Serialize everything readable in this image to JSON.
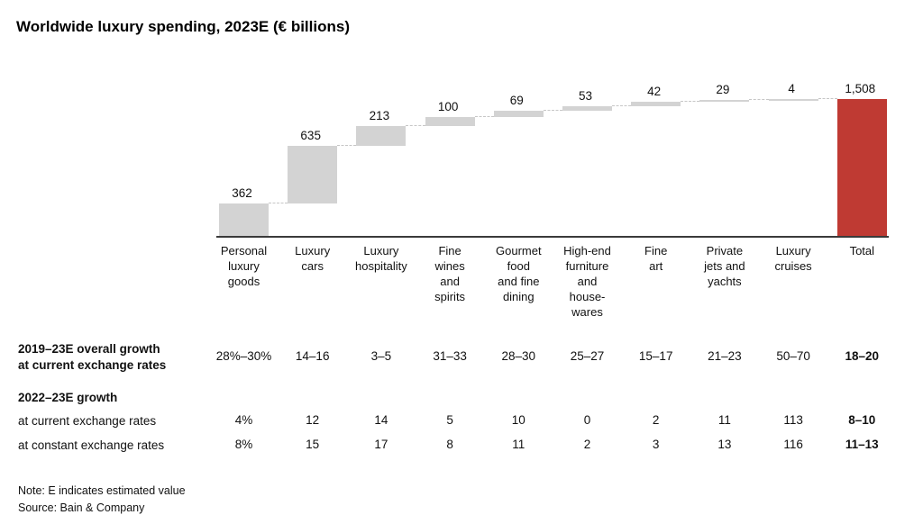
{
  "title": "Worldwide luxury spending, 2023E (€ billions)",
  "chart_data": {
    "type": "bar",
    "subtype": "waterfall",
    "title": "Worldwide luxury spending, 2023E (€ billions)",
    "unit": "€ billions",
    "categories": [
      "Personal luxury goods",
      "Luxury cars",
      "Luxury hospitality",
      "Fine wines and spirits",
      "Gourmet food and fine dining",
      "High-end furniture and house-wares",
      "Fine art",
      "Private jets and yachts",
      "Luxury cruises",
      "Total"
    ],
    "category_lines": [
      [
        "Personal",
        "luxury",
        "goods"
      ],
      [
        "Luxury",
        "cars"
      ],
      [
        "Luxury",
        "hospitality"
      ],
      [
        "Fine",
        "wines",
        "and",
        "spirits"
      ],
      [
        "Gourmet",
        "food",
        "and fine",
        "dining"
      ],
      [
        "High-end",
        "furniture",
        "and",
        "house-",
        "wares"
      ],
      [
        "Fine",
        "art"
      ],
      [
        "Private",
        "jets and",
        "yachts"
      ],
      [
        "Luxury",
        "cruises"
      ],
      [
        "Total"
      ]
    ],
    "values": [
      362,
      635,
      213,
      100,
      69,
      53,
      42,
      29,
      4
    ],
    "total": 1508,
    "value_labels": [
      "362",
      "635",
      "213",
      "100",
      "69",
      "53",
      "42",
      "29",
      "4",
      "1,508"
    ],
    "bar_color": "#d3d3d3",
    "total_color": "#bf3a33",
    "ylim": [
      0,
      1508
    ],
    "grid": false,
    "legend": false
  },
  "table": {
    "rows": [
      {
        "kind": "data",
        "label_lines": [
          "2019–23E overall growth",
          "at current exchange rates"
        ],
        "label_bold": true,
        "values": [
          "28%–30%",
          "14–16",
          "3–5",
          "31–33",
          "28–30",
          "25–27",
          "15–17",
          "21–23",
          "50–70",
          "18–20"
        ]
      },
      {
        "kind": "section",
        "label_lines": [
          "2022–23E growth"
        ],
        "label_bold": true
      },
      {
        "kind": "data",
        "label_lines": [
          "at current exchange rates"
        ],
        "label_bold": false,
        "values": [
          "4%",
          "12",
          "14",
          "5",
          "10",
          "0",
          "2",
          "11",
          "113",
          "8–10"
        ]
      },
      {
        "kind": "data",
        "label_lines": [
          "at constant exchange rates"
        ],
        "label_bold": false,
        "values": [
          "8%",
          "15",
          "17",
          "8",
          "11",
          "2",
          "3",
          "13",
          "116",
          "11–13"
        ]
      }
    ]
  },
  "footer": {
    "note": "Note: E indicates estimated value",
    "source": "Source: Bain & Company"
  }
}
